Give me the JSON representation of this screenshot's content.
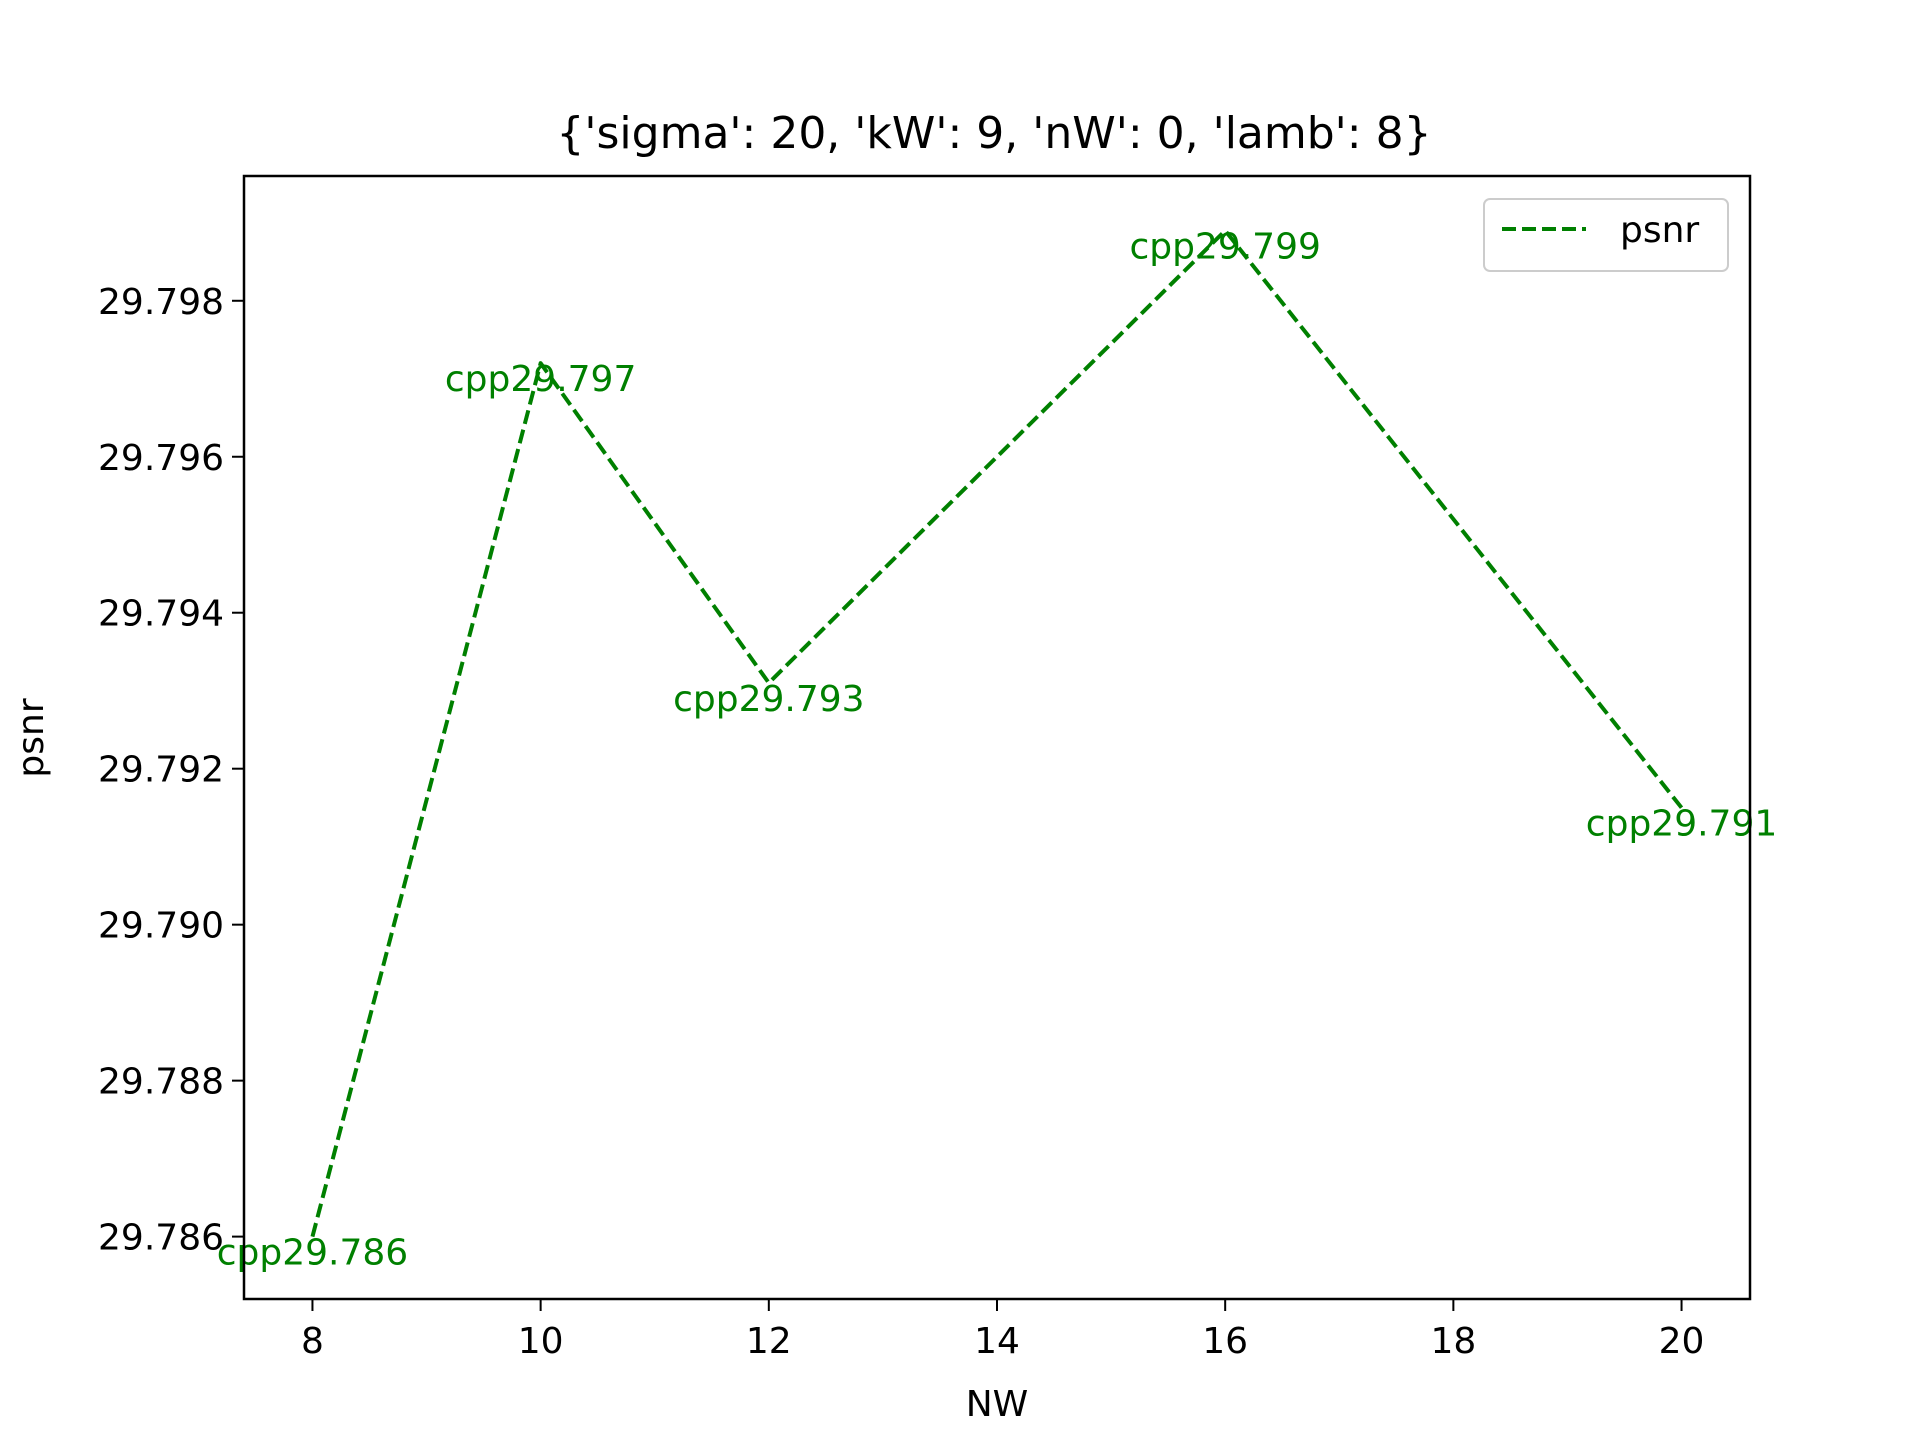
{
  "chart_data": {
    "type": "line",
    "title": "{'sigma': 20, 'kW': 9, 'nW': 0, 'lamb': 8}",
    "xlabel": "NW",
    "ylabel": "psnr",
    "x": [
      8,
      10,
      12,
      16,
      20
    ],
    "series": [
      {
        "name": "psnr",
        "values": [
          29.786,
          29.7972,
          29.7931,
          29.7989,
          29.7915
        ],
        "color": "#008000",
        "linestyle": "dashed",
        "point_labels": [
          "cpp29.786",
          "cpp29.797",
          "cpp29.793",
          "cpp29.799",
          "cpp29.791"
        ]
      }
    ],
    "xlim": [
      7.4,
      20.6
    ],
    "ylim": [
      29.7852,
      29.7996
    ],
    "xticks": [
      8,
      10,
      12,
      14,
      16,
      18,
      20
    ],
    "xtick_labels": [
      "8",
      "10",
      "12",
      "14",
      "16",
      "18",
      "20"
    ],
    "yticks": [
      29.786,
      29.788,
      29.79,
      29.792,
      29.794,
      29.796,
      29.798
    ],
    "ytick_labels": [
      "29.786",
      "29.788",
      "29.790",
      "29.792",
      "29.794",
      "29.796",
      "29.798"
    ],
    "grid": false,
    "legend": "top-right"
  }
}
